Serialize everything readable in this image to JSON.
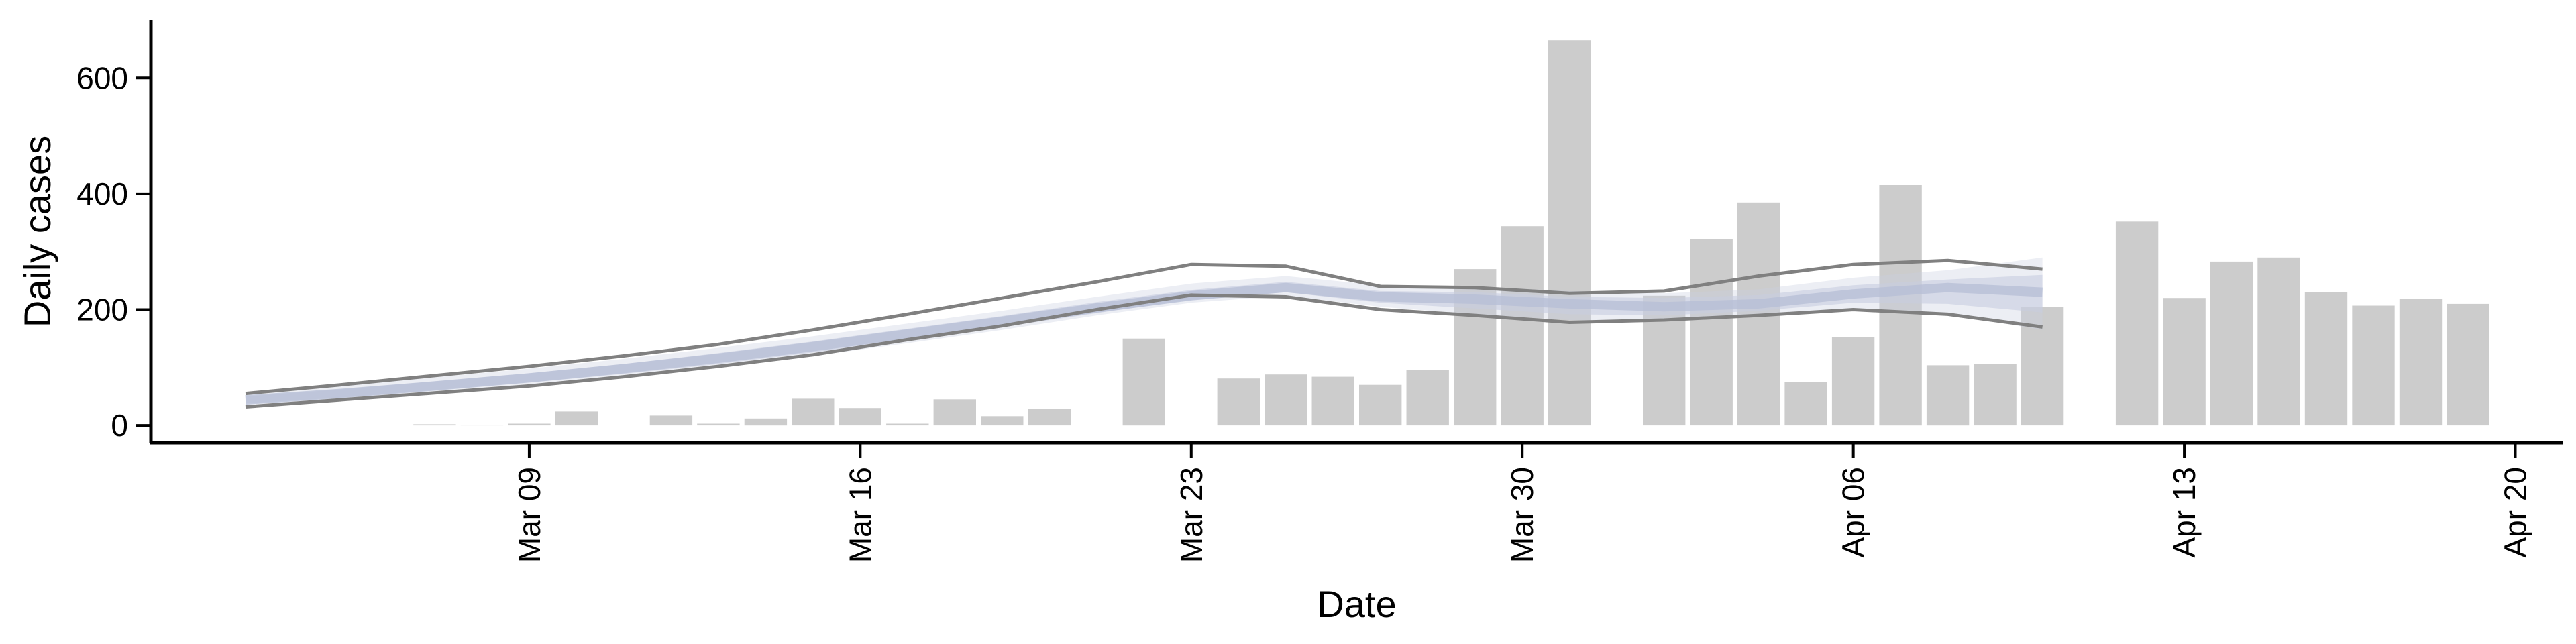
{
  "chart_data": {
    "type": "bar",
    "title": "",
    "xlabel": "Date",
    "ylabel": "Daily cases",
    "ylim": [
      -30,
      700
    ],
    "xlim": [
      "2020-03-01",
      "2020-04-21"
    ],
    "grid": false,
    "x_ticks": [
      "Mar 09",
      "Mar 16",
      "Mar 23",
      "Mar 30",
      "Apr 06",
      "Apr 13",
      "Apr 20"
    ],
    "x_tick_dates": [
      "2020-03-09",
      "2020-03-16",
      "2020-03-23",
      "2020-03-30",
      "2020-04-06",
      "2020-04-13",
      "2020-04-20"
    ],
    "y_ticks": [
      0,
      200,
      400,
      600
    ],
    "bar_color": "#cccccc",
    "band_color": "#c8cde0",
    "line_color": "#808080",
    "bars": {
      "dates": [
        "2020-03-07",
        "2020-03-08",
        "2020-03-09",
        "2020-03-10",
        "2020-03-12",
        "2020-03-13",
        "2020-03-14",
        "2020-03-15",
        "2020-03-16",
        "2020-03-17",
        "2020-03-18",
        "2020-03-19",
        "2020-03-20",
        "2020-03-22",
        "2020-03-24",
        "2020-03-25",
        "2020-03-26",
        "2020-03-27",
        "2020-03-28",
        "2020-03-29",
        "2020-03-30",
        "2020-03-31",
        "2020-04-02",
        "2020-04-03",
        "2020-04-04",
        "2020-04-05",
        "2020-04-06",
        "2020-04-07",
        "2020-04-08",
        "2020-04-09",
        "2020-04-10",
        "2020-04-12",
        "2020-04-13",
        "2020-04-14",
        "2020-04-15",
        "2020-04-16",
        "2020-04-17",
        "2020-04-18",
        "2020-04-19"
      ],
      "values": [
        2,
        1,
        3,
        24,
        17,
        3,
        12,
        46,
        30,
        3,
        45,
        16,
        29,
        150,
        81,
        88,
        84,
        70,
        96,
        270,
        344,
        665,
        224,
        322,
        385,
        75,
        152,
        415,
        104,
        106,
        205,
        352,
        220,
        283,
        290,
        230,
        207,
        218,
        210
      ]
    },
    "estimate": {
      "dates": [
        "2020-03-03",
        "2020-03-05",
        "2020-03-07",
        "2020-03-09",
        "2020-03-11",
        "2020-03-13",
        "2020-03-15",
        "2020-03-17",
        "2020-03-19",
        "2020-03-21",
        "2020-03-23",
        "2020-03-25",
        "2020-03-27",
        "2020-03-29",
        "2020-03-31",
        "2020-04-02",
        "2020-04-04",
        "2020-04-06",
        "2020-04-08",
        "2020-04-10"
      ],
      "median": [
        44,
        55,
        68,
        82,
        98,
        116,
        136,
        158,
        180,
        203,
        224,
        238,
        222,
        218,
        210,
        205,
        210,
        227,
        238,
        230
      ],
      "lower": [
        34,
        44,
        56,
        68,
        83,
        100,
        120,
        142,
        165,
        190,
        212,
        224,
        205,
        192,
        182,
        180,
        188,
        202,
        192,
        165
      ],
      "upper": [
        55,
        68,
        83,
        98,
        115,
        134,
        154,
        176,
        198,
        222,
        245,
        258,
        242,
        240,
        232,
        228,
        235,
        255,
        268,
        290
      ],
      "band_lower": [
        38,
        48,
        61,
        74,
        89,
        106,
        126,
        147,
        170,
        194,
        217,
        230,
        212,
        202,
        192,
        190,
        198,
        212,
        210,
        195
      ],
      "band_upper": [
        50,
        62,
        76,
        90,
        106,
        125,
        145,
        167,
        189,
        213,
        234,
        248,
        232,
        230,
        222,
        220,
        225,
        242,
        252,
        260
      ],
      "line_upper": [
        55,
        70,
        86,
        102,
        120,
        140,
        165,
        192,
        220,
        248,
        278,
        275,
        240,
        238,
        228,
        232,
        258,
        278,
        285,
        270
      ],
      "line_lower": [
        32,
        44,
        56,
        68,
        84,
        102,
        122,
        148,
        172,
        200,
        225,
        222,
        200,
        190,
        178,
        182,
        190,
        200,
        192,
        170
      ]
    }
  }
}
